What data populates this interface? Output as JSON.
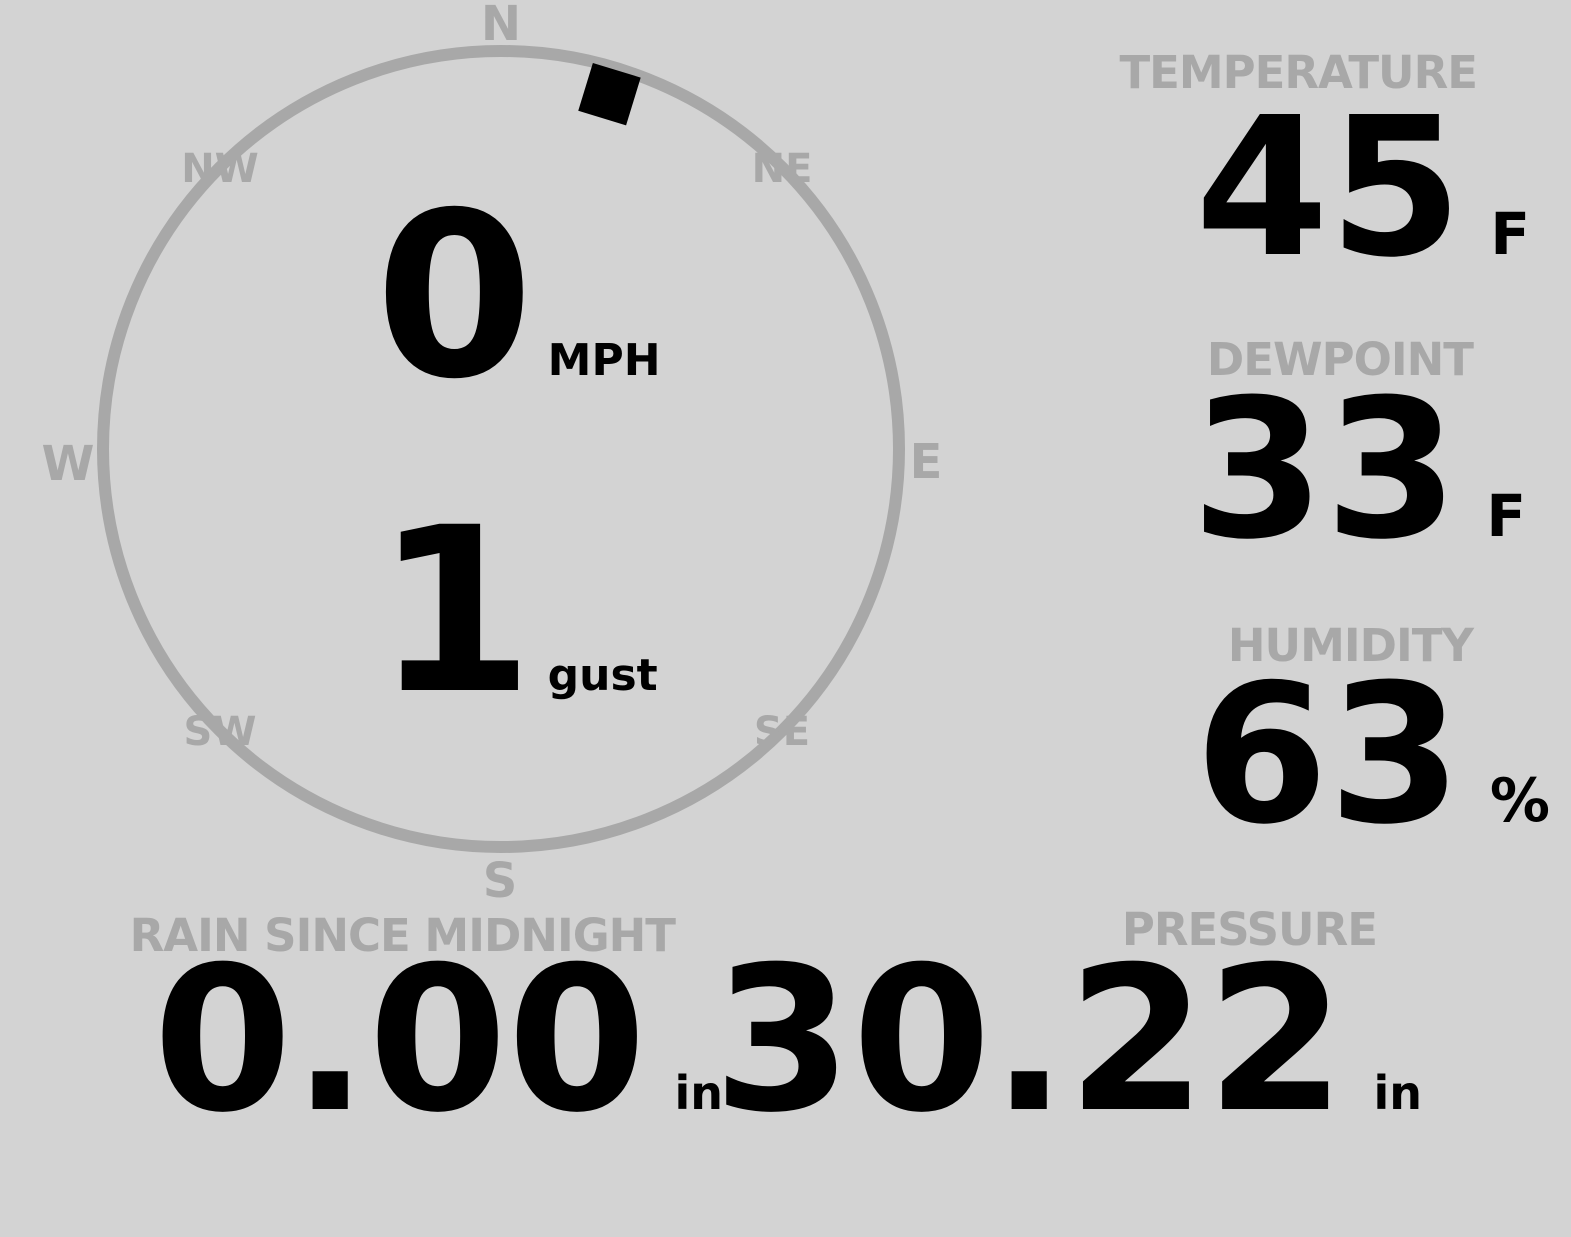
{
  "colors": {
    "background": "#d3d3d3",
    "muted": "#a8a8a8",
    "text": "#000000",
    "marker": "#000000"
  },
  "compass": {
    "cardinal_n": "N",
    "cardinal_e": "E",
    "cardinal_s": "S",
    "cardinal_w": "W",
    "intercardinal_ne": "NE",
    "intercardinal_se": "SE",
    "intercardinal_sw": "SW",
    "intercardinal_nw": "NW",
    "wind": {
      "speed": "0",
      "speed_unit": "MPH",
      "gust": "1",
      "gust_unit": "gust",
      "direction_deg": 17
    }
  },
  "metrics": {
    "temperature": {
      "label": "TEMPERATURE",
      "value": "45",
      "unit": "F"
    },
    "dewpoint": {
      "label": "DEWPOINT",
      "value": "33",
      "unit": "F"
    },
    "humidity": {
      "label": "HUMIDITY",
      "value": "63",
      "unit": "%"
    },
    "rain": {
      "label": "RAIN SINCE MIDNIGHT",
      "value": "0.00",
      "unit": "in"
    },
    "pressure": {
      "label": "PRESSURE",
      "value": "30.22",
      "unit": "in"
    }
  }
}
